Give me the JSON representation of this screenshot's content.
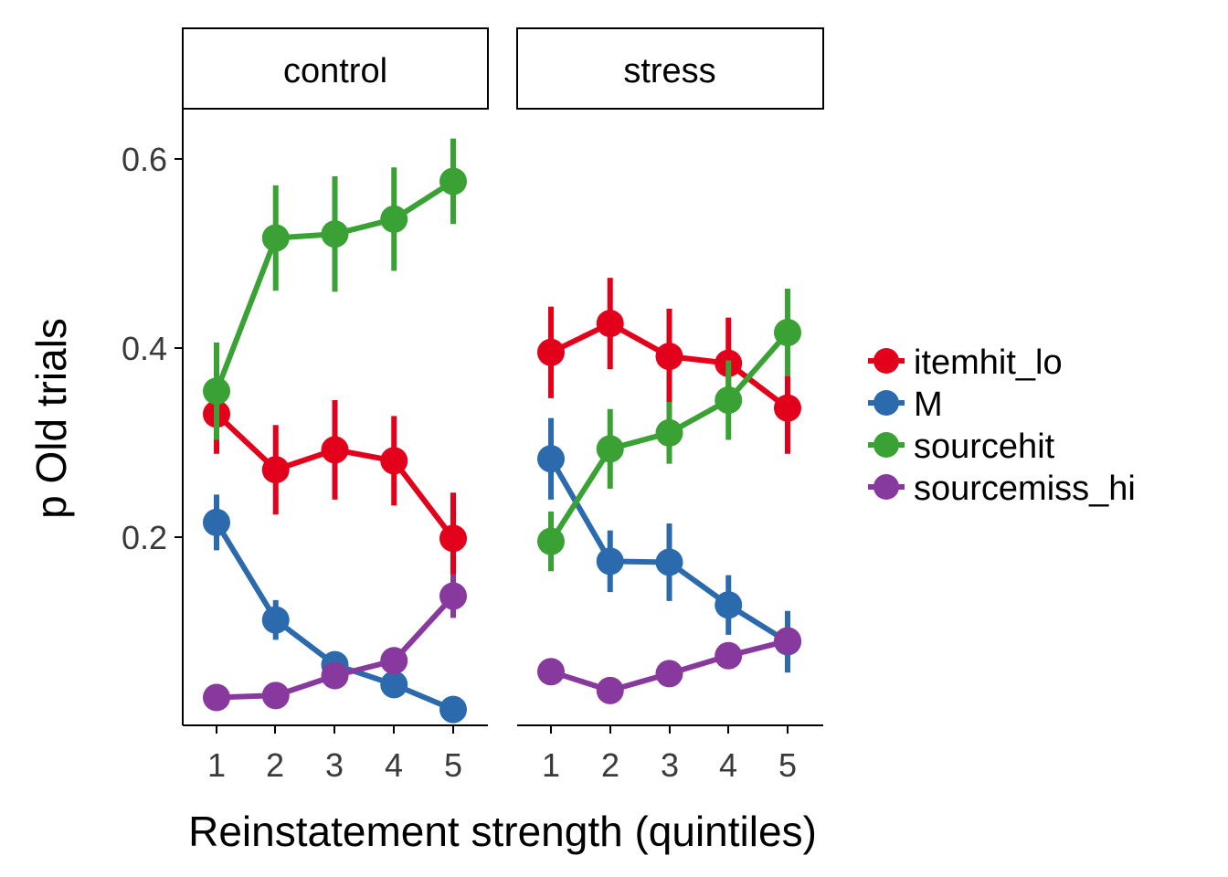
{
  "chart_data": {
    "type": "line",
    "xlabel": "Reinstatement strength (quintiles)",
    "ylabel": "p Old trials",
    "x": [
      1,
      2,
      3,
      4,
      5
    ],
    "x_tick_labels": [
      "1",
      "2",
      "3",
      "4",
      "5"
    ],
    "y_ticks": [
      0.2,
      0.4,
      0.6
    ],
    "y_tick_labels": [
      "0.2",
      "0.4",
      "0.6"
    ],
    "ylim": [
      0.03,
      0.65
    ],
    "grid": false,
    "legend_position": "right",
    "legend": [
      "itemhit_lo",
      "M",
      "sourcehit",
      "sourcemiss_hi"
    ],
    "colors": {
      "itemhit_lo": "#e3001b",
      "M": "#2b6aad",
      "sourcehit": "#3aa134",
      "sourcemiss_hi": "#88399e"
    },
    "panels": [
      {
        "label": "control",
        "series": [
          {
            "name": "itemhit_lo",
            "values": [
              0.343,
              0.287,
              0.307,
              0.296,
              0.218
            ],
            "lower": [
              0.303,
              0.242,
              0.257,
              0.251,
              0.172
            ],
            "upper": [
              0.383,
              0.332,
              0.357,
              0.341,
              0.264
            ]
          },
          {
            "name": "M",
            "values": [
              0.234,
              0.136,
              0.091,
              0.071,
              0.046
            ],
            "lower": [
              0.206,
              0.116,
              0.078,
              0.063,
              0.041
            ],
            "upper": [
              0.262,
              0.156,
              0.104,
              0.079,
              0.051
            ]
          },
          {
            "name": "sourcehit",
            "values": [
              0.366,
              0.52,
              0.524,
              0.539,
              0.577
            ],
            "lower": [
              0.317,
              0.467,
              0.466,
              0.487,
              0.534
            ],
            "upper": [
              0.415,
              0.573,
              0.582,
              0.591,
              0.62
            ]
          },
          {
            "name": "sourcemiss_hi",
            "values": [
              0.058,
              0.06,
              0.08,
              0.095,
              0.16
            ],
            "lower": [
              0.054,
              0.056,
              0.072,
              0.085,
              0.138
            ],
            "upper": [
              0.062,
              0.064,
              0.088,
              0.105,
              0.182
            ]
          }
        ]
      },
      {
        "label": "stress",
        "series": [
          {
            "name": "itemhit_lo",
            "values": [
              0.405,
              0.434,
              0.401,
              0.394,
              0.349
            ],
            "lower": [
              0.359,
              0.388,
              0.353,
              0.348,
              0.303
            ],
            "upper": [
              0.451,
              0.48,
              0.449,
              0.44,
              0.395
            ]
          },
          {
            "name": "M",
            "values": [
              0.298,
              0.195,
              0.194,
              0.151,
              0.114
            ],
            "lower": [
              0.257,
              0.164,
              0.155,
              0.121,
              0.083
            ],
            "upper": [
              0.339,
              0.226,
              0.233,
              0.181,
              0.145
            ]
          },
          {
            "name": "sourcehit",
            "values": [
              0.215,
              0.308,
              0.324,
              0.357,
              0.425
            ],
            "lower": [
              0.185,
              0.268,
              0.293,
              0.317,
              0.381
            ],
            "upper": [
              0.245,
              0.348,
              0.355,
              0.397,
              0.469
            ]
          },
          {
            "name": "sourcemiss_hi",
            "values": [
              0.084,
              0.065,
              0.082,
              0.1,
              0.115
            ],
            "lower": [
              0.074,
              0.059,
              0.075,
              0.088,
              0.104
            ],
            "upper": [
              0.094,
              0.071,
              0.089,
              0.112,
              0.126
            ]
          }
        ]
      }
    ]
  }
}
